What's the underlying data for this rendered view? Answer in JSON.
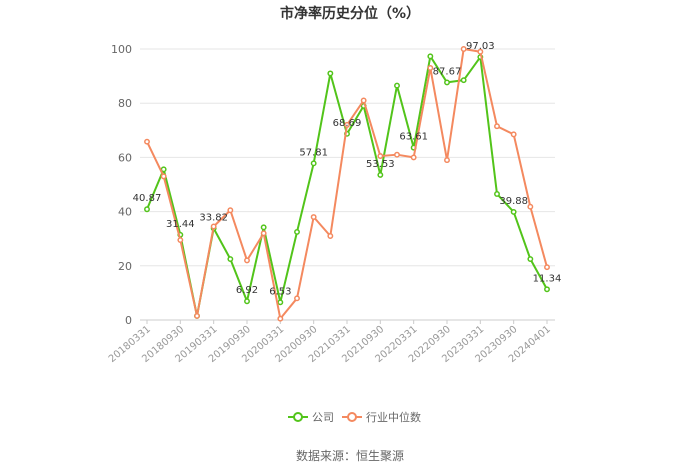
{
  "chart_data": {
    "type": "line",
    "title": "市净率历史分位（%）",
    "xlabel": "",
    "ylabel": "",
    "ylim": [
      0,
      100
    ],
    "yticks": [
      "0",
      "20",
      "40",
      "60",
      "80",
      "100"
    ],
    "x_tick_labels": [
      "20180331",
      "20180930",
      "20190331",
      "20190930",
      "20200331",
      "20200930",
      "20210331",
      "20210930",
      "20220331",
      "20220930",
      "20230331",
      "20230930",
      "20240401"
    ],
    "x": [
      "20180331",
      "20180630",
      "20180930",
      "20181231",
      "20190331",
      "20190630",
      "20190930",
      "20191231",
      "20200331",
      "20200630",
      "20200930",
      "20201231",
      "20210331",
      "20210630",
      "20210930",
      "20211231",
      "20220331",
      "20220630",
      "20220930",
      "20221231",
      "20230331",
      "20230630",
      "20230930",
      "20231231",
      "20240401"
    ],
    "series": [
      {
        "name": "公司",
        "color": "#52c41a",
        "values": [
          40.87,
          55.6,
          31.44,
          1.5,
          33.82,
          22.5,
          6.92,
          34.2,
          6.53,
          32.5,
          57.81,
          91.0,
          68.69,
          79.0,
          53.53,
          86.5,
          63.61,
          97.3,
          87.67,
          88.5,
          97.03,
          46.5,
          39.88,
          22.5,
          11.34
        ]
      },
      {
        "name": "行业中位数",
        "color": "#f4895f",
        "values": [
          65.8,
          53.0,
          29.5,
          1.5,
          34.5,
          40.5,
          22.0,
          32.0,
          0.5,
          8.0,
          38.0,
          31.0,
          72.0,
          81.0,
          60.5,
          61.0,
          60.0,
          93.0,
          59.0,
          100.0,
          99.0,
          71.5,
          68.5,
          41.8,
          19.5
        ]
      }
    ],
    "data_labels": [
      {
        "series": 0,
        "index": 0,
        "text": "40.87"
      },
      {
        "series": 0,
        "index": 2,
        "text": "31.44"
      },
      {
        "series": 0,
        "index": 4,
        "text": "33.82"
      },
      {
        "series": 0,
        "index": 6,
        "text": "6.92"
      },
      {
        "series": 0,
        "index": 8,
        "text": "6.53"
      },
      {
        "series": 0,
        "index": 10,
        "text": "57.81"
      },
      {
        "series": 0,
        "index": 12,
        "text": "68.69"
      },
      {
        "series": 0,
        "index": 14,
        "text": "53.53"
      },
      {
        "series": 0,
        "index": 16,
        "text": "63.61"
      },
      {
        "series": 0,
        "index": 18,
        "text": "87.67"
      },
      {
        "series": 0,
        "index": 20,
        "text": "97.03"
      },
      {
        "series": 0,
        "index": 22,
        "text": "39.88"
      },
      {
        "series": 0,
        "index": 24,
        "text": "11.34"
      }
    ],
    "grid": true,
    "legend_position": "bottom"
  },
  "source_text": "数据来源：恒生聚源"
}
